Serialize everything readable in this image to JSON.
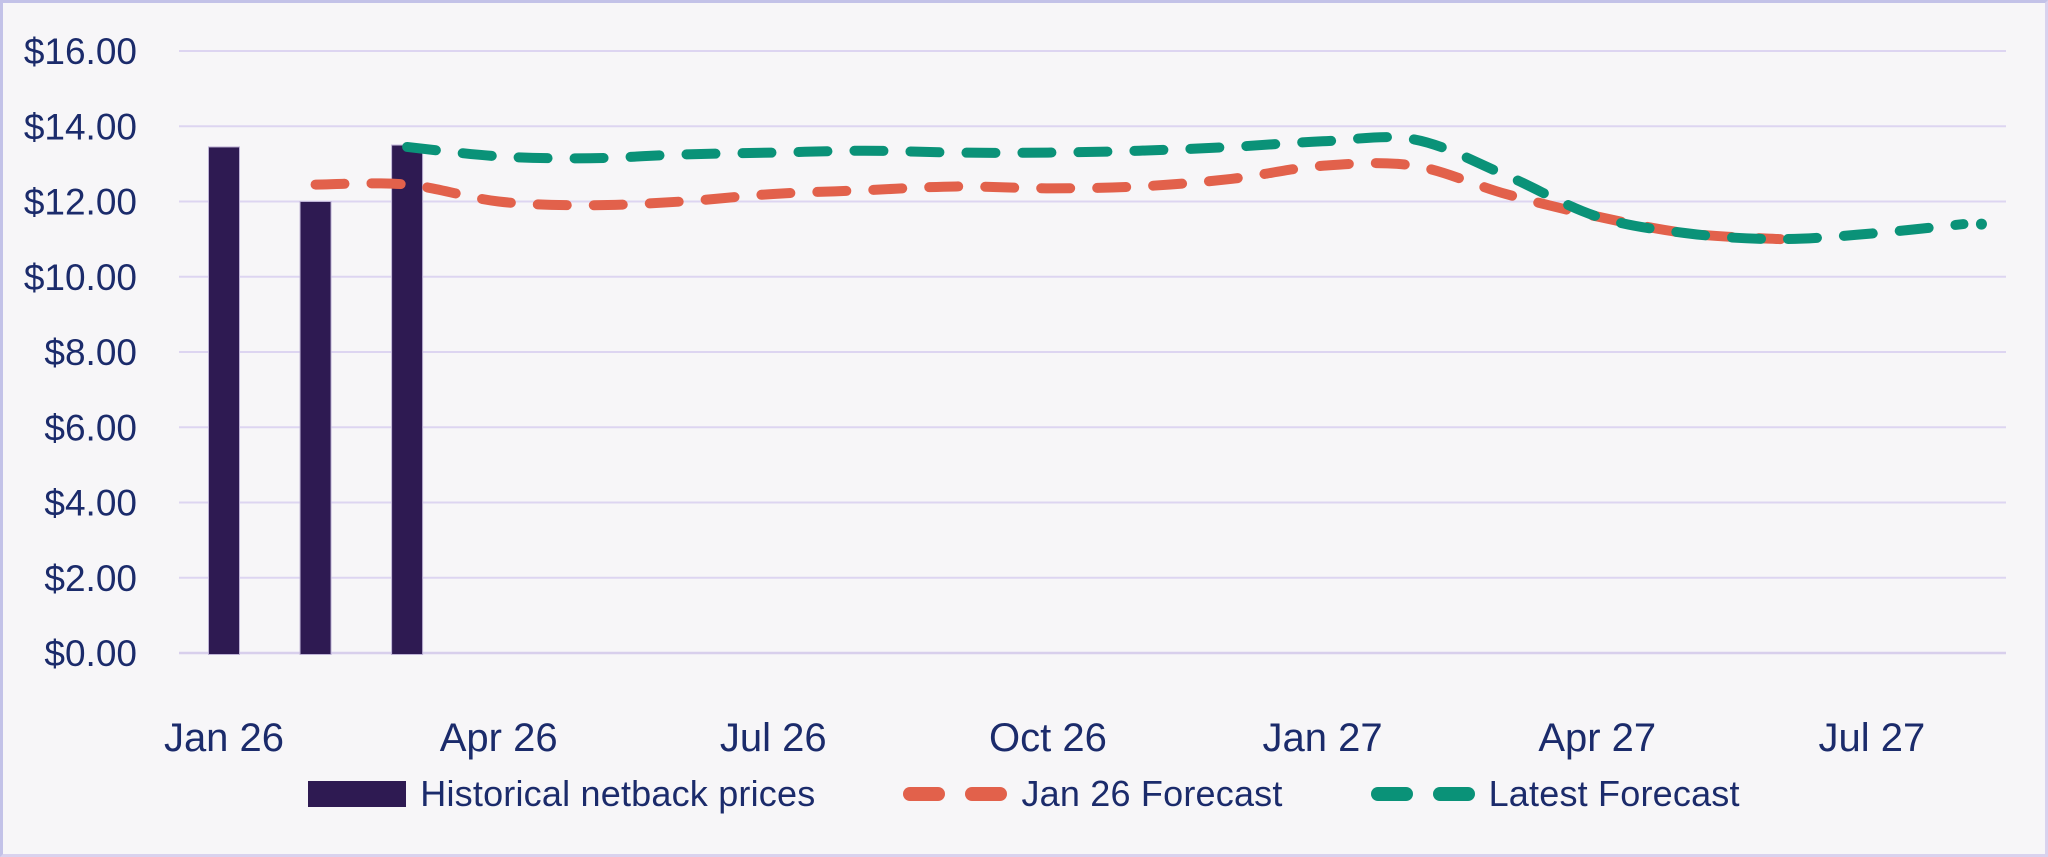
{
  "chart_data": {
    "type": "bar+line combo",
    "title": "",
    "grid": "horizontal",
    "legend_position": "bottom",
    "months": [
      "Jan 26",
      "Feb 26",
      "Mar 26",
      "Apr 26",
      "May 26",
      "Jun 26",
      "Jul 26",
      "Aug 26",
      "Sep 26",
      "Oct 26",
      "Nov 26",
      "Dec 26",
      "Jan 27",
      "Feb 27",
      "Mar 27",
      "Apr 27",
      "May 27",
      "Jun 27",
      "Jul 27",
      "Aug 27"
    ],
    "y_axis": {
      "min": 0,
      "max": 16,
      "step": 2,
      "tick_labels": [
        "$16.00",
        "$14.00",
        "$12.00",
        "$10.00",
        "$8.00",
        "$6.00",
        "$4.00",
        "$2.00",
        "$0.00"
      ]
    },
    "x_axis": {
      "tick_labels": [
        "Jan 26",
        "Apr 26",
        "Jul 26",
        "Oct 26",
        "Jan 27",
        "Apr 27",
        "Jul 27"
      ],
      "tick_month_indices": [
        0,
        3,
        6,
        9,
        12,
        15,
        18
      ]
    },
    "series": [
      {
        "name": "Historical netback prices",
        "type": "bar",
        "color": "#2e1a52",
        "values": [
          13.45,
          12.0,
          13.5,
          null,
          null,
          null,
          null,
          null,
          null,
          null,
          null,
          null,
          null,
          null,
          null,
          null,
          null,
          null,
          null,
          null
        ]
      },
      {
        "name": "Jan 26 Forecast",
        "type": "dashed_line",
        "color": "#e2614b",
        "end_dot": false,
        "values": [
          null,
          12.45,
          12.45,
          12.0,
          11.9,
          12.0,
          12.2,
          12.3,
          12.4,
          12.35,
          12.4,
          12.6,
          12.95,
          12.95,
          12.2,
          11.6,
          11.15,
          11.0,
          null,
          null
        ]
      },
      {
        "name": "Latest Forecast",
        "type": "dashed_line",
        "color": "#0a9278",
        "end_dot": true,
        "values": [
          null,
          null,
          13.45,
          13.2,
          13.15,
          13.25,
          13.3,
          13.35,
          13.3,
          13.3,
          13.35,
          13.45,
          13.6,
          13.65,
          12.7,
          11.6,
          11.15,
          11.0,
          11.15,
          11.4
        ]
      }
    ]
  },
  "legend": {
    "items": [
      {
        "label": "Historical netback prices",
        "swatch": "bar",
        "color": "#2e1a52"
      },
      {
        "label": "Jan 26 Forecast",
        "swatch": "dashes",
        "color": "#e2614b"
      },
      {
        "label": "Latest Forecast",
        "swatch": "dashes",
        "color": "#0a9278"
      }
    ]
  },
  "colors": {
    "background": "#f7f6f8",
    "gridline": "#ddd5f1",
    "zero_line": "#d8cfec",
    "axis_text": "#1b2b6b",
    "bar": "#2e1a52",
    "orange_line": "#e2614b",
    "teal_line": "#0a9278",
    "frame_border": "#d9d2ee"
  }
}
